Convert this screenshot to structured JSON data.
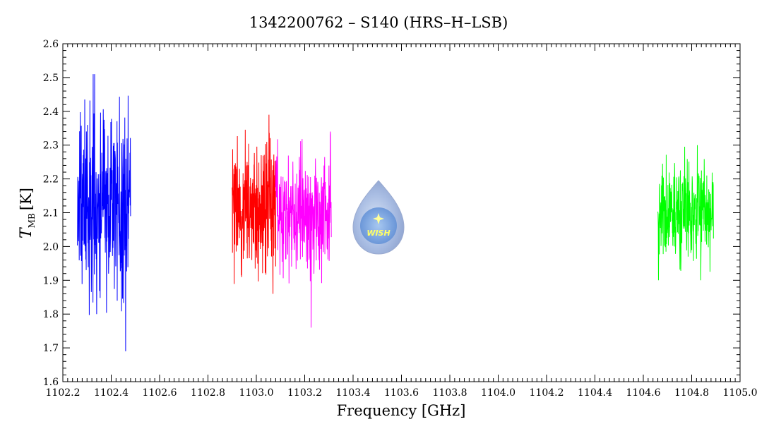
{
  "chart_data": {
    "type": "line",
    "title": "1342200762 – S140 (HRS–H–LSB)",
    "xlabel": "Frequency [GHz]",
    "ylabel_main": "T",
    "ylabel_sub": "MB",
    "ylabel_unit": "[K]",
    "xlim": [
      1102.2,
      1105.0
    ],
    "ylim": [
      1.6,
      2.6
    ],
    "x_ticks": [
      "1102.2",
      "1102.4",
      "1102.6",
      "1102.8",
      "1103.0",
      "1103.2",
      "1103.4",
      "1103.6",
      "1103.8",
      "1104.0",
      "1104.2",
      "1104.4",
      "1104.6",
      "1104.8",
      "1105.0"
    ],
    "y_ticks": [
      "1.6",
      "1.7",
      "1.8",
      "1.9",
      "2.0",
      "2.1",
      "2.2",
      "2.3",
      "2.4",
      "2.5",
      "2.6"
    ],
    "grid": false,
    "series": [
      {
        "color": "#0000ff",
        "x_range": [
          1102.26,
          1102.48
        ],
        "mean": 2.12,
        "min": 1.69,
        "max": 2.51,
        "seed": 11
      },
      {
        "color": "#ff0000",
        "x_range": [
          1102.9,
          1103.08
        ],
        "mean": 2.12,
        "min": 1.86,
        "max": 2.39,
        "seed": 23
      },
      {
        "color": "#ff00ff",
        "x_range": [
          1103.08,
          1103.31
        ],
        "mean": 2.1,
        "min": 1.76,
        "max": 2.34,
        "seed": 37
      },
      {
        "color": "#00ff00",
        "x_range": [
          1104.66,
          1104.89
        ],
        "mean": 2.1,
        "min": 1.9,
        "max": 2.3,
        "seed": 53
      }
    ]
  },
  "logo": {
    "text": "WISH"
  }
}
